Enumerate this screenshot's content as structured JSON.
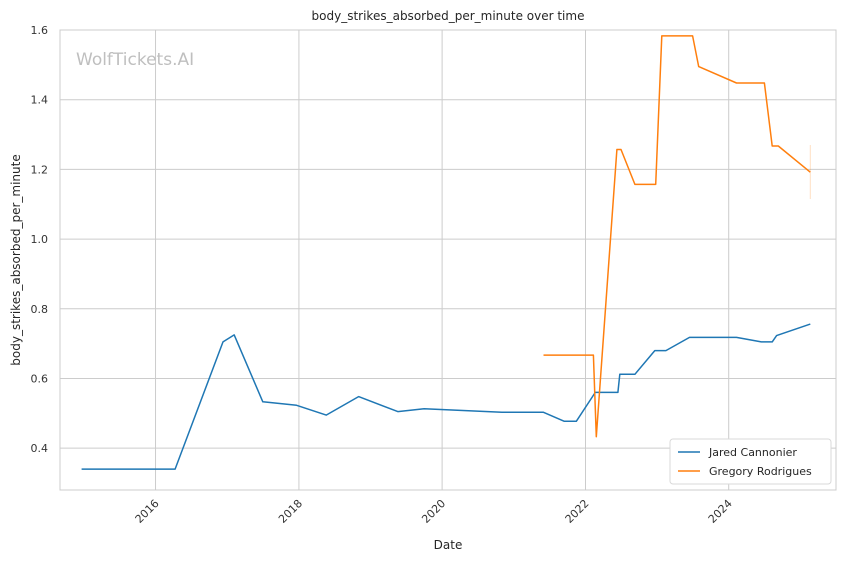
{
  "chart_data": {
    "type": "line",
    "title": "body_strikes_absorbed_per_minute over time",
    "xlabel": "Date",
    "ylabel": "body_strikes_absorbed_per_minute",
    "watermark": "WolfTickets.AI",
    "xlim": [
      "2014-09-01",
      "2025-07-01"
    ],
    "ylim": [
      0.28,
      1.6
    ],
    "x_ticks": [
      "2016",
      "2018",
      "2020",
      "2022",
      "2024"
    ],
    "y_ticks": [
      "0.4",
      "0.6",
      "0.8",
      "1.0",
      "1.2",
      "1.4",
      "1.6"
    ],
    "grid": true,
    "legend_position": "bottom-right",
    "series": [
      {
        "name": "Jared Cannonier",
        "color": "#1f77b4",
        "points": [
          [
            "2014-12-20",
            0.34
          ],
          [
            "2016-04-10",
            0.34
          ],
          [
            "2016-12-10",
            0.705
          ],
          [
            "2017-02-05",
            0.725
          ],
          [
            "2017-07-01",
            0.533
          ],
          [
            "2017-12-20",
            0.523
          ],
          [
            "2018-05-20",
            0.495
          ],
          [
            "2018-11-01",
            0.548
          ],
          [
            "2019-05-20",
            0.505
          ],
          [
            "2019-10-01",
            0.513
          ],
          [
            "2020-11-01",
            0.503
          ],
          [
            "2021-06-01",
            0.503
          ],
          [
            "2021-09-15",
            0.477
          ],
          [
            "2021-11-15",
            0.477
          ],
          [
            "2022-02-20",
            0.56
          ],
          [
            "2022-06-15",
            0.56
          ],
          [
            "2022-06-25",
            0.612
          ],
          [
            "2022-09-10",
            0.612
          ],
          [
            "2022-12-20",
            0.68
          ],
          [
            "2023-02-15",
            0.68
          ],
          [
            "2023-06-15",
            0.718
          ],
          [
            "2024-02-10",
            0.718
          ],
          [
            "2024-06-15",
            0.705
          ],
          [
            "2024-08-10",
            0.705
          ],
          [
            "2024-09-01",
            0.723
          ],
          [
            "2025-02-20",
            0.756
          ]
        ]
      },
      {
        "name": "Gregory Rodrigues",
        "color": "#ff7f0e",
        "points": [
          [
            "2021-06-01",
            0.667
          ],
          [
            "2022-02-10",
            0.667
          ],
          [
            "2022-02-25",
            0.433
          ],
          [
            "2022-06-10",
            1.257
          ],
          [
            "2022-07-01",
            1.257
          ],
          [
            "2022-09-10",
            1.157
          ],
          [
            "2022-12-25",
            1.157
          ],
          [
            "2023-01-25",
            1.583
          ],
          [
            "2023-07-01",
            1.583
          ],
          [
            "2023-08-01",
            1.495
          ],
          [
            "2024-02-10",
            1.448
          ],
          [
            "2024-07-01",
            1.448
          ],
          [
            "2024-08-10",
            1.267
          ],
          [
            "2024-09-10",
            1.267
          ],
          [
            "2025-02-20",
            1.192
          ]
        ],
        "error_band": {
          "x": "2025-02-20",
          "low": 1.115,
          "high": 1.27
        }
      }
    ]
  }
}
